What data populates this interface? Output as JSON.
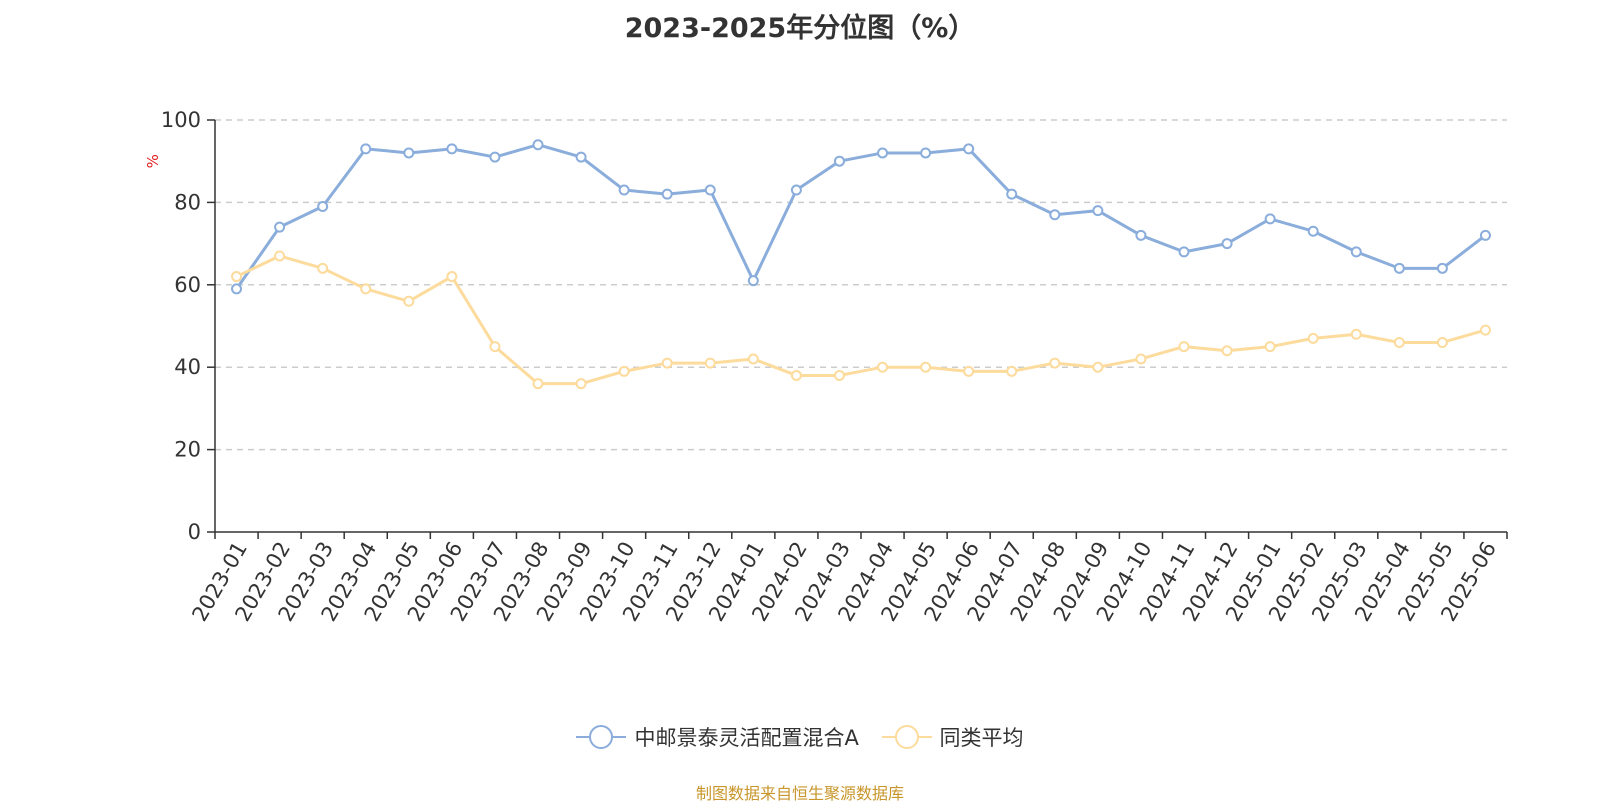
{
  "chart_data": {
    "type": "line",
    "title": "2023-2025年分位图（%）",
    "ylabel": "%",
    "ylim": [
      0,
      100
    ],
    "yticks": [
      0,
      20,
      40,
      60,
      80,
      100
    ],
    "grid": true,
    "legend_position": "bottom-center",
    "categories": [
      "2023-01",
      "2023-02",
      "2023-03",
      "2023-04",
      "2023-05",
      "2023-06",
      "2023-07",
      "2023-08",
      "2023-09",
      "2023-10",
      "2023-11",
      "2023-12",
      "2024-01",
      "2024-02",
      "2024-03",
      "2024-04",
      "2024-05",
      "2024-06",
      "2024-07",
      "2024-08",
      "2024-09",
      "2024-10",
      "2024-11",
      "2024-12",
      "2025-01",
      "2025-02",
      "2025-03",
      "2025-04",
      "2025-05",
      "2025-06"
    ],
    "series": [
      {
        "name": "中邮景泰灵活配置混合A",
        "color": "#8aaddb",
        "values": [
          59,
          74,
          79,
          93,
          92,
          93,
          91,
          94,
          91,
          83,
          82,
          83,
          61,
          83,
          90,
          92,
          92,
          93,
          82,
          77,
          78,
          72,
          68,
          70,
          76,
          73,
          68,
          64,
          64,
          72
        ]
      },
      {
        "name": "同类平均",
        "color": "#fcdb9c",
        "values": [
          62,
          67,
          64,
          59,
          56,
          62,
          45,
          36,
          36,
          39,
          41,
          41,
          42,
          38,
          38,
          40,
          40,
          39,
          39,
          41,
          40,
          42,
          45,
          44,
          45,
          47,
          48,
          46,
          46,
          49
        ]
      }
    ]
  },
  "source_text": "制图数据来自恒生聚源数据库"
}
